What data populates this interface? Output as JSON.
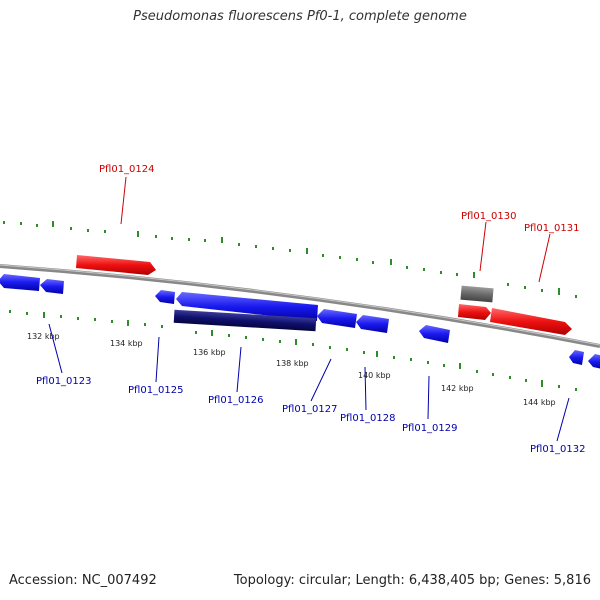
{
  "header": {
    "title": "Pseudomonas fluorescens Pf0-1, complete genome"
  },
  "footer": {
    "accession": "Accession: NC_007492",
    "summary": "Topology: circular; Length: 6,438,405 bp; Genes: 5,816"
  },
  "colors": {
    "forward_strand": "#ee1111",
    "reverse_strand": "#1a1aee",
    "highlight": "#10106e",
    "other": "#6a6a6a",
    "backbone": "#888888",
    "ticks": "#2e8b2e",
    "forward_label": "#cc0000",
    "reverse_label": "#0000aa"
  },
  "scale_labels": [
    "132 kbp",
    "134 kbp",
    "136 kbp",
    "138 kbp",
    "140 kbp",
    "142 kbp",
    "144 kbp"
  ],
  "gene_labels": {
    "pfl01_0123": "Pfl01_0123",
    "pfl01_0124": "Pfl01_0124",
    "pfl01_0125": "Pfl01_0125",
    "pfl01_0126": "Pfl01_0126",
    "pfl01_0127": "Pfl01_0127",
    "pfl01_0128": "Pfl01_0128",
    "pfl01_0129": "Pfl01_0129",
    "pfl01_0130": "Pfl01_0130",
    "pfl01_0131": "Pfl01_0131",
    "pfl01_0132": "Pfl01_0132"
  }
}
